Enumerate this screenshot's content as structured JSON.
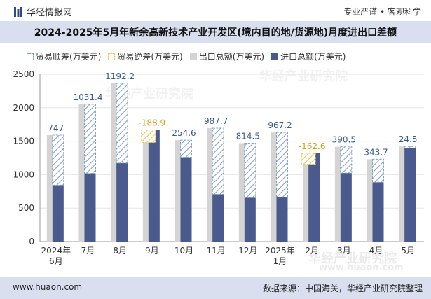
{
  "header": {
    "brand": "华经情报网",
    "tagline": "专业严谨 • 客观科学",
    "title": "2024-2025年5月年新余高新技术产业开发区(境内目的地/货源地)月度进出口差额"
  },
  "footer": {
    "site": "www.huaon.com",
    "source": "数据来源：中国海关，华经产业研究院整理"
  },
  "watermark": {
    "text": "华经产业研究院",
    "url": "www.huaon.com"
  },
  "colors": {
    "export": "#d4d4d4",
    "import": "#4a5a8c",
    "surplus": "#7f9fc8",
    "deficit": "#f3c74a",
    "band": "#d9dfee"
  },
  "legend": [
    {
      "label": "贸易顺差(万美元)",
      "key": "surplus"
    },
    {
      "label": "贸易逆差(万美元)",
      "key": "deficit"
    },
    {
      "label": "出口总额(万美元)",
      "key": "export"
    },
    {
      "label": "进口总额(万美元)",
      "key": "import"
    }
  ],
  "chart_data": {
    "type": "bar",
    "categories": [
      "2024年\n6月",
      "7月",
      "8月",
      "9月",
      "10月",
      "11月",
      "12月",
      "2025年\n1月",
      "2月",
      "3月",
      "4月",
      "5月"
    ],
    "series": [
      {
        "name": "出口总额(万美元)",
        "values": [
          1590,
          2050,
          2365,
          1480,
          1515,
          1695,
          1470,
          1630,
          1155,
          1415,
          1230,
          1420
        ]
      },
      {
        "name": "进口总额(万美元)",
        "values": [
          843,
          1019,
          1173,
          1669,
          1260,
          707,
          656,
          663,
          1318,
          1024,
          886,
          1396
        ]
      }
    ],
    "balance": [
      747,
      1031.4,
      1192.2,
      -188.9,
      254.6,
      987.7,
      814.5,
      967.2,
      -162.6,
      390.5,
      343.7,
      24.5
    ],
    "balance_labels": [
      "747",
      "1031.4",
      "1192.2",
      "-188.9",
      "254.6",
      "987.7",
      "814.5",
      "967.2",
      "-162.6",
      "390.5",
      "343.7",
      "24.5"
    ],
    "ylim": [
      0,
      2500
    ],
    "yticks": [
      0,
      500,
      1000,
      1500,
      2000,
      2500
    ],
    "grid": true,
    "legend_position": "top"
  }
}
